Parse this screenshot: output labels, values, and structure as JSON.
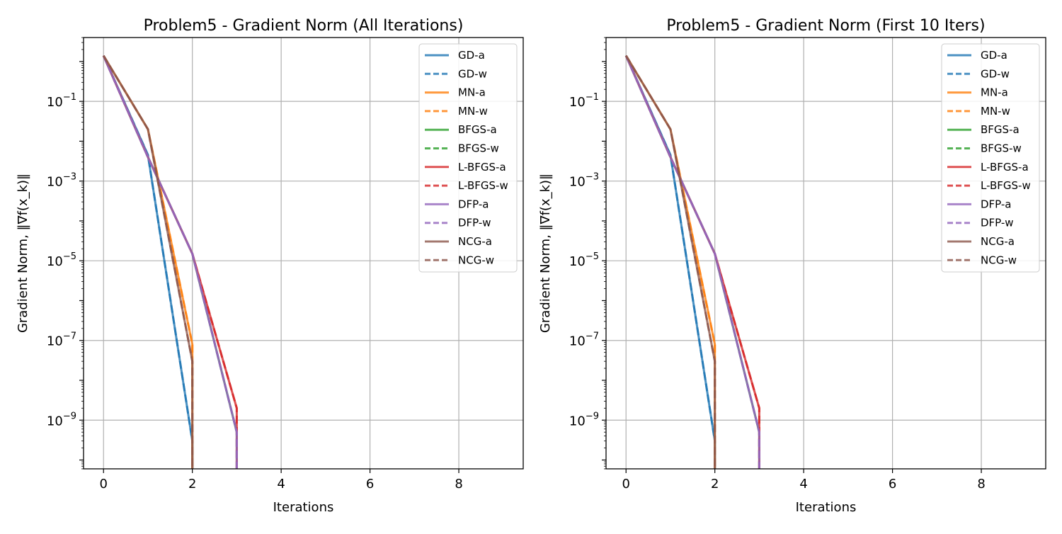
{
  "chart_data": [
    {
      "type": "line",
      "title": "Problem5 - Gradient Norm (All Iterations)",
      "xlabel": "Iterations",
      "ylabel": "Gradient Norm, ‖∇f(x_k)‖",
      "yscale": "log",
      "xlim": [
        -0.45,
        9.45
      ],
      "ylim": [
        6e-11,
        4
      ],
      "xticks": [
        "0",
        "2",
        "4",
        "6",
        "8"
      ],
      "yticks": [
        "10−1",
        "10−3",
        "10−5",
        "10−7",
        "10−9"
      ],
      "grid": true,
      "legend_position": "top-right",
      "series": [
        {
          "name": "GD-a",
          "color": "#1f77b4",
          "dash": "solid",
          "x": [
            0,
            1,
            2,
            2
          ],
          "y": [
            1.4,
            0.0045,
            3e-10,
            1e-12
          ]
        },
        {
          "name": "GD-w",
          "color": "#1f77b4",
          "dash": "dashed",
          "x": [
            0,
            1,
            2,
            2
          ],
          "y": [
            1.4,
            0.0045,
            3e-10,
            1e-12
          ]
        },
        {
          "name": "MN-a",
          "color": "#ff7f0e",
          "dash": "solid",
          "x": [
            0,
            1,
            2,
            2
          ],
          "y": [
            1.4,
            0.02,
            8e-08,
            1e-12
          ]
        },
        {
          "name": "MN-w",
          "color": "#ff7f0e",
          "dash": "dashed",
          "x": [
            0,
            1,
            2,
            2
          ],
          "y": [
            1.4,
            0.02,
            8e-08,
            1e-12
          ]
        },
        {
          "name": "BFGS-a",
          "color": "#2ca02c",
          "dash": "solid",
          "x": [
            0,
            1,
            2,
            3,
            3
          ],
          "y": [
            1.4,
            0.004,
            1.5e-05,
            5e-10,
            1e-12
          ]
        },
        {
          "name": "BFGS-w",
          "color": "#2ca02c",
          "dash": "dashed",
          "x": [
            0,
            1,
            2,
            3,
            3
          ],
          "y": [
            1.4,
            0.004,
            1.5e-05,
            5e-10,
            1e-12
          ]
        },
        {
          "name": "L-BFGS-a",
          "color": "#d62728",
          "dash": "solid",
          "x": [
            0,
            1,
            2,
            3,
            3
          ],
          "y": [
            1.4,
            0.004,
            1.5e-05,
            2e-09,
            1e-12
          ]
        },
        {
          "name": "L-BFGS-w",
          "color": "#d62728",
          "dash": "dashed",
          "x": [
            0,
            1,
            2,
            3,
            3
          ],
          "y": [
            1.4,
            0.004,
            1.5e-05,
            2e-09,
            1e-12
          ]
        },
        {
          "name": "DFP-a",
          "color": "#9467bd",
          "dash": "solid",
          "x": [
            0,
            1,
            2,
            3,
            3
          ],
          "y": [
            1.4,
            0.004,
            1.5e-05,
            5e-10,
            1e-12
          ]
        },
        {
          "name": "DFP-w",
          "color": "#9467bd",
          "dash": "dashed",
          "x": [
            0,
            1,
            2,
            3,
            3
          ],
          "y": [
            1.4,
            0.004,
            1.5e-05,
            5e-10,
            1e-12
          ]
        },
        {
          "name": "NCG-a",
          "color": "#8c564b",
          "dash": "solid",
          "x": [
            0,
            1,
            2,
            2
          ],
          "y": [
            1.4,
            0.02,
            3e-08,
            1e-12
          ]
        },
        {
          "name": "NCG-w",
          "color": "#8c564b",
          "dash": "dashed",
          "x": [
            0,
            1,
            2,
            2
          ],
          "y": [
            1.4,
            0.02,
            3e-08,
            1e-12
          ]
        }
      ]
    },
    {
      "type": "line",
      "title": "Problem5 - Gradient Norm (First 10 Iters)",
      "xlabel": "Iterations",
      "ylabel": "Gradient Norm, ‖∇f(x_k)‖",
      "yscale": "log",
      "xlim": [
        -0.45,
        9.45
      ],
      "ylim": [
        6e-11,
        4
      ],
      "xticks": [
        "0",
        "2",
        "4",
        "6",
        "8"
      ],
      "yticks": [
        "10−1",
        "10−3",
        "10−5",
        "10−7",
        "10−9"
      ],
      "grid": true,
      "legend_position": "top-right",
      "series": [
        {
          "name": "GD-a",
          "color": "#1f77b4",
          "dash": "solid",
          "x": [
            0,
            1,
            2,
            2
          ],
          "y": [
            1.4,
            0.0045,
            3e-10,
            1e-12
          ]
        },
        {
          "name": "GD-w",
          "color": "#1f77b4",
          "dash": "dashed",
          "x": [
            0,
            1,
            2,
            2
          ],
          "y": [
            1.4,
            0.0045,
            3e-10,
            1e-12
          ]
        },
        {
          "name": "MN-a",
          "color": "#ff7f0e",
          "dash": "solid",
          "x": [
            0,
            1,
            2,
            2
          ],
          "y": [
            1.4,
            0.02,
            8e-08,
            1e-12
          ]
        },
        {
          "name": "MN-w",
          "color": "#ff7f0e",
          "dash": "dashed",
          "x": [
            0,
            1,
            2,
            2
          ],
          "y": [
            1.4,
            0.02,
            8e-08,
            1e-12
          ]
        },
        {
          "name": "BFGS-a",
          "color": "#2ca02c",
          "dash": "solid",
          "x": [
            0,
            1,
            2,
            3,
            3
          ],
          "y": [
            1.4,
            0.004,
            1.5e-05,
            5e-10,
            1e-12
          ]
        },
        {
          "name": "BFGS-w",
          "color": "#2ca02c",
          "dash": "dashed",
          "x": [
            0,
            1,
            2,
            3,
            3
          ],
          "y": [
            1.4,
            0.004,
            1.5e-05,
            5e-10,
            1e-12
          ]
        },
        {
          "name": "L-BFGS-a",
          "color": "#d62728",
          "dash": "solid",
          "x": [
            0,
            1,
            2,
            3,
            3
          ],
          "y": [
            1.4,
            0.004,
            1.5e-05,
            2e-09,
            1e-12
          ]
        },
        {
          "name": "L-BFGS-w",
          "color": "#d62728",
          "dash": "dashed",
          "x": [
            0,
            1,
            2,
            3,
            3
          ],
          "y": [
            1.4,
            0.004,
            1.5e-05,
            2e-09,
            1e-12
          ]
        },
        {
          "name": "DFP-a",
          "color": "#9467bd",
          "dash": "solid",
          "x": [
            0,
            1,
            2,
            3,
            3
          ],
          "y": [
            1.4,
            0.004,
            1.5e-05,
            5e-10,
            1e-12
          ]
        },
        {
          "name": "DFP-w",
          "color": "#9467bd",
          "dash": "dashed",
          "x": [
            0,
            1,
            2,
            3,
            3
          ],
          "y": [
            1.4,
            0.004,
            1.5e-05,
            5e-10,
            1e-12
          ]
        },
        {
          "name": "NCG-a",
          "color": "#8c564b",
          "dash": "solid",
          "x": [
            0,
            1,
            2,
            2
          ],
          "y": [
            1.4,
            0.02,
            3e-08,
            1e-12
          ]
        },
        {
          "name": "NCG-w",
          "color": "#8c564b",
          "dash": "dashed",
          "x": [
            0,
            1,
            2,
            2
          ],
          "y": [
            1.4,
            0.02,
            3e-08,
            1e-12
          ]
        }
      ]
    }
  ]
}
